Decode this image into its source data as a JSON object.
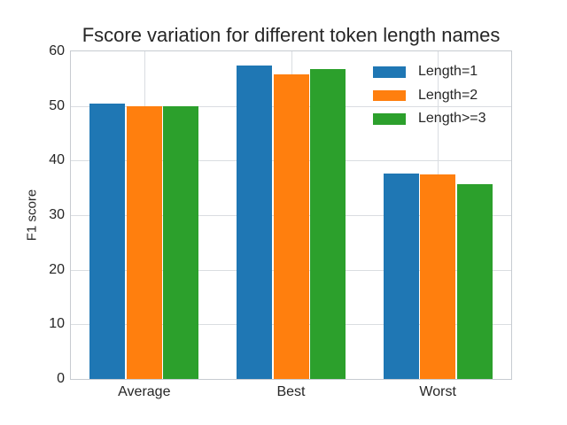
{
  "chart_data": {
    "type": "bar",
    "title": "Fscore variation for different token length names",
    "xlabel": "",
    "ylabel": "F1 score",
    "categories": [
      "Average",
      "Best",
      "Worst"
    ],
    "series": [
      {
        "name": "Length=1",
        "color": "#1f77b4",
        "values": [
          50.5,
          57.4,
          37.6
        ]
      },
      {
        "name": "Length=2",
        "color": "#ff7f0e",
        "values": [
          50.0,
          55.8,
          37.4
        ]
      },
      {
        "name": "Length>=3",
        "color": "#2ca02c",
        "values": [
          50.0,
          56.8,
          35.6
        ]
      }
    ],
    "ylim": [
      0,
      60
    ],
    "yticks": [
      0,
      10,
      20,
      30,
      40,
      50,
      60
    ],
    "grid": "both",
    "legend_position": "upper right"
  },
  "style": {
    "background": "#ffffff",
    "grid_color": "#dadde1",
    "spine_color": "#c7cbd1",
    "text_color": "#262626"
  }
}
